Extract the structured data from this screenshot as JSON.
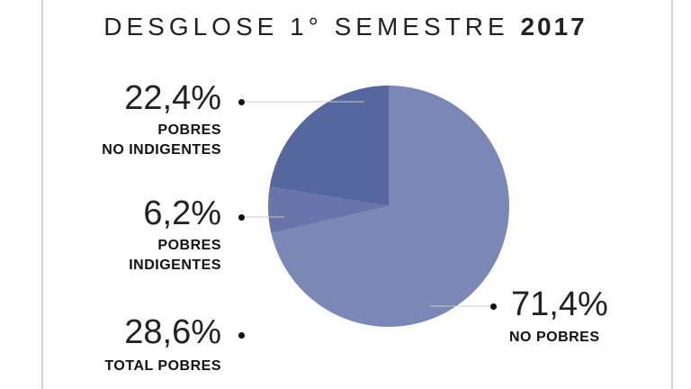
{
  "title": {
    "text": "DESGLOSE 1° SEMESTRE",
    "year": "2017"
  },
  "chart_data": {
    "type": "pie",
    "slices": [
      {
        "label": "NO POBRES",
        "value": 71.4,
        "display": "71,4%",
        "color": "#7b88b6"
      },
      {
        "label": "POBRES INDIGENTES",
        "value": 6.2,
        "display": "6,2%",
        "color": "#6975aa"
      },
      {
        "label": "POBRES NO INDIGENTES",
        "value": 22.4,
        "display": "22,4%",
        "color": "#56669e"
      }
    ],
    "total": {
      "label": "TOTAL POBRES",
      "display": "28,6%"
    }
  },
  "labels": {
    "pobres_no_indigentes_line1": "POBRES",
    "pobres_no_indigentes_line2": "NO INDIGENTES",
    "pobres_indigentes_line1": "POBRES",
    "pobres_indigentes_line2": "INDIGENTES",
    "no_pobres": "NO POBRES",
    "total_pobres": "TOTAL POBRES"
  },
  "colors": {
    "leader_line": "#c8c8c8",
    "text": "#222222"
  }
}
